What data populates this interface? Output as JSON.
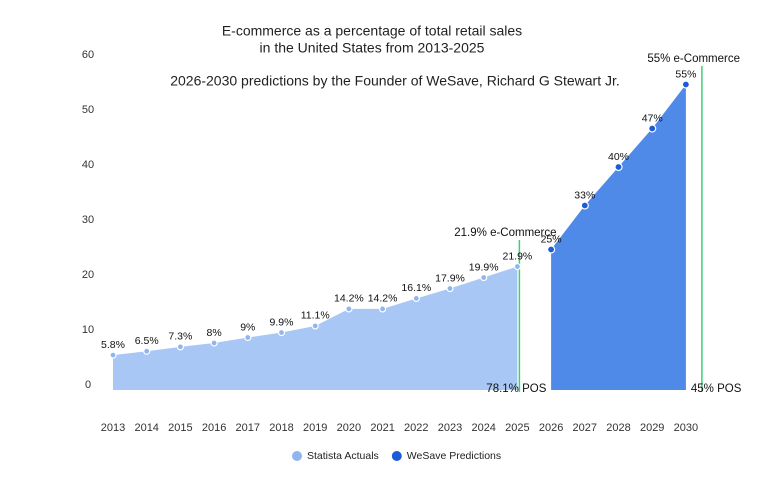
{
  "chart_data": {
    "type": "area",
    "title": [
      "E-commerce as a percentage of total retail sales",
      "in the United States from 2013-2025"
    ],
    "subtitle": "2026-2030 predictions by the Founder of WeSave, Richard G Stewart Jr.",
    "categories": [
      "2013",
      "2014",
      "2015",
      "2016",
      "2017",
      "2018",
      "2019",
      "2020",
      "2021",
      "2022",
      "2023",
      "2024",
      "2025",
      "2026",
      "2027",
      "2028",
      "2029",
      "2030"
    ],
    "series": [
      {
        "name": "Statista Actuals",
        "color": "#a8c7f5",
        "marker_color": "#8fb6f0",
        "values": [
          5.8,
          6.5,
          7.3,
          8,
          9,
          9.9,
          11.1,
          14.2,
          14.2,
          16.1,
          17.9,
          19.9,
          21.9,
          null,
          null,
          null,
          null,
          null
        ],
        "value_labels": [
          "5.8%",
          "6.5%",
          "7.3%",
          "8%",
          "9%",
          "9.9%",
          "11.1%",
          "14.2%",
          "14.2%",
          "16.1%",
          "17.9%",
          "19.9%",
          "21.9%",
          null,
          null,
          null,
          null,
          null
        ]
      },
      {
        "name": "WeSave Predictions",
        "color": "#4f8ae8",
        "marker_color": "#1a5bd6",
        "values": [
          null,
          null,
          null,
          null,
          null,
          null,
          null,
          null,
          null,
          null,
          null,
          null,
          null,
          25,
          33,
          40,
          47,
          55
        ],
        "value_labels": [
          null,
          null,
          null,
          null,
          null,
          null,
          null,
          null,
          null,
          null,
          null,
          null,
          null,
          "25%",
          "33%",
          "40%",
          "47%",
          "55%"
        ]
      }
    ],
    "ylim": [
      0,
      60
    ],
    "yticks": [
      0,
      10,
      20,
      30,
      40,
      50,
      60
    ],
    "grid": false,
    "legend": "bottom",
    "annotations": [
      {
        "text": "21.9% e-Commerce",
        "category": 12,
        "position": "top"
      },
      {
        "text": "78.1% POS",
        "category": 12,
        "position": "bottom"
      },
      {
        "text": "55% e-Commerce",
        "category": 17,
        "position": "top"
      },
      {
        "text": "45% POS",
        "category": 17,
        "position": "bottom"
      }
    ]
  }
}
